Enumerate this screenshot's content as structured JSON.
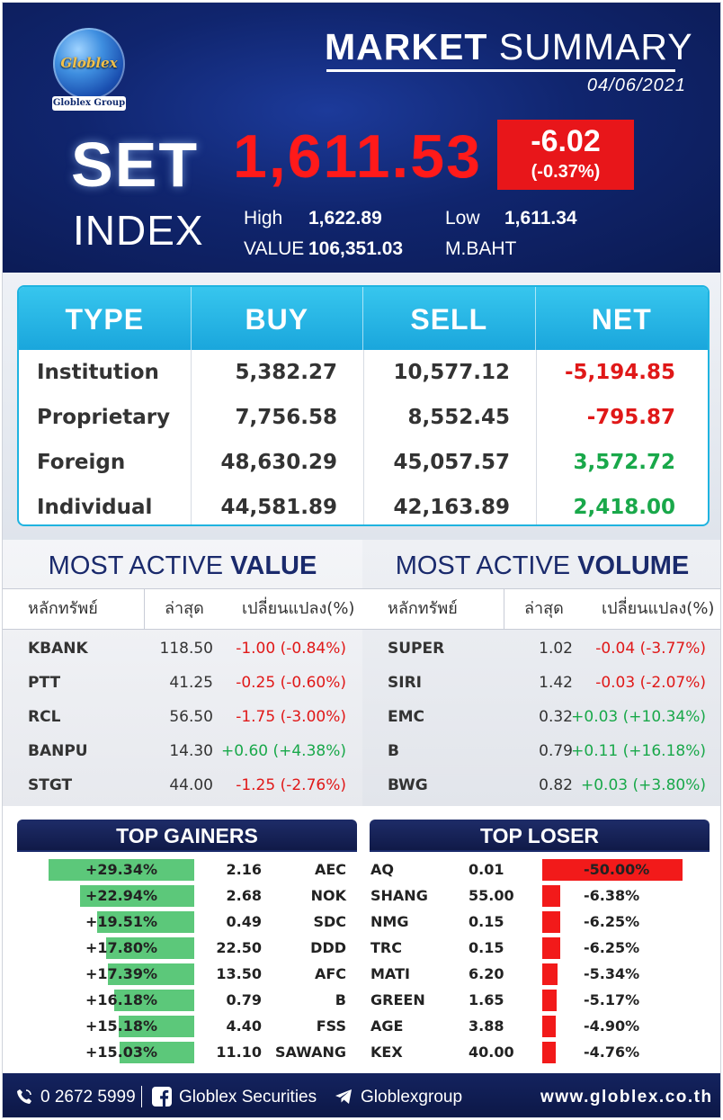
{
  "header": {
    "logo_text": "Globlex",
    "logo_group": "Globlex Group",
    "title_bold": "MARKET",
    "title_rest": " SUMMARY",
    "date": "04/06/2021",
    "set_label": "SET",
    "index_label": "INDEX",
    "index_value": "1,611.53",
    "change": "-6.02",
    "change_pct": "(-0.37%)",
    "high_label": "High",
    "high_value": "1,622.89",
    "low_label": "Low",
    "low_value": "1,611.34",
    "value_label": "VALUE",
    "value_amount": "106,351.03",
    "value_unit": "M.BAHT"
  },
  "investors": {
    "headers": [
      "TYPE",
      "BUY",
      "SELL",
      "NET"
    ],
    "rows": [
      {
        "type": "Institution",
        "buy": "5,382.27",
        "sell": "10,577.12",
        "net": "-5,194.85",
        "dir": "neg"
      },
      {
        "type": "Proprietary",
        "buy": "7,756.58",
        "sell": "8,552.45",
        "net": "-795.87",
        "dir": "neg"
      },
      {
        "type": "Foreign",
        "buy": "48,630.29",
        "sell": "45,057.57",
        "net": "3,572.72",
        "dir": "pos"
      },
      {
        "type": "Individual",
        "buy": "44,581.89",
        "sell": "42,163.89",
        "net": "2,418.00",
        "dir": "pos"
      }
    ]
  },
  "most_active_value": {
    "title_prefix": "MOST ACTIVE ",
    "title_bold": "VALUE",
    "headers": [
      "หลักทรัพย์",
      "ล่าสุด",
      "เปลี่ยนแปลง(%)"
    ],
    "rows": [
      {
        "symbol": "KBANK",
        "last": "118.50",
        "change": "-1.00 (-0.84%)",
        "dir": "neg"
      },
      {
        "symbol": "PTT",
        "last": "41.25",
        "change": "-0.25 (-0.60%)",
        "dir": "neg"
      },
      {
        "symbol": "RCL",
        "last": "56.50",
        "change": "-1.75 (-3.00%)",
        "dir": "neg"
      },
      {
        "symbol": "BANPU",
        "last": "14.30",
        "change": "+0.60 (+4.38%)",
        "dir": "pos"
      },
      {
        "symbol": "STGT",
        "last": "44.00",
        "change": "-1.25 (-2.76%)",
        "dir": "neg"
      }
    ]
  },
  "most_active_volume": {
    "title_prefix": "MOST ACTIVE ",
    "title_bold": "VOLUME",
    "headers": [
      "หลักทรัพย์",
      "ล่าสุด",
      "เปลี่ยนแปลง(%)"
    ],
    "rows": [
      {
        "symbol": "SUPER",
        "last": "1.02",
        "change": "-0.04 (-3.77%)",
        "dir": "neg"
      },
      {
        "symbol": "SIRI",
        "last": "1.42",
        "change": "-0.03 (-2.07%)",
        "dir": "neg"
      },
      {
        "symbol": "EMC",
        "last": "0.32",
        "change": "+0.03 (+10.34%)",
        "dir": "pos"
      },
      {
        "symbol": "B",
        "last": "0.79",
        "change": "+0.11 (+16.18%)",
        "dir": "pos"
      },
      {
        "symbol": "BWG",
        "last": "0.82",
        "change": "+0.03 (+3.80%)",
        "dir": "pos"
      }
    ]
  },
  "top_gainers": {
    "title": "TOP GAINERS",
    "bar_color": "#5cc87a",
    "rows": [
      {
        "pct": "+29.34%",
        "price": "2.16",
        "symbol": "AEC",
        "level": 29.34
      },
      {
        "pct": "+22.94%",
        "price": "2.68",
        "symbol": "NOK",
        "level": 22.94
      },
      {
        "pct": "+19.51%",
        "price": "0.49",
        "symbol": "SDC",
        "level": 19.51
      },
      {
        "pct": "+17.80%",
        "price": "22.50",
        "symbol": "DDD",
        "level": 17.8
      },
      {
        "pct": "+17.39%",
        "price": "13.50",
        "symbol": "AFC",
        "level": 17.39
      },
      {
        "pct": "+16.18%",
        "price": "0.79",
        "symbol": "B",
        "level": 16.18
      },
      {
        "pct": "+15.18%",
        "price": "4.40",
        "symbol": "FSS",
        "level": 15.18
      },
      {
        "pct": "+15.03%",
        "price": "11.10",
        "symbol": "SAWANG",
        "level": 15.03
      }
    ]
  },
  "top_loser": {
    "title": "TOP LOSER",
    "bar_color": "#f21a1a",
    "rows": [
      {
        "symbol": "AQ",
        "price": "0.01",
        "pct": "-50.00%",
        "level": 50.0
      },
      {
        "symbol": "SHANG",
        "price": "55.00",
        "pct": "-6.38%",
        "level": 6.38
      },
      {
        "symbol": "NMG",
        "price": "0.15",
        "pct": "-6.25%",
        "level": 6.25
      },
      {
        "symbol": "TRC",
        "price": "0.15",
        "pct": "-6.25%",
        "level": 6.25
      },
      {
        "symbol": "MATI",
        "price": "6.20",
        "pct": "-5.34%",
        "level": 5.34
      },
      {
        "symbol": "GREEN",
        "price": "1.65",
        "pct": "-5.17%",
        "level": 5.17
      },
      {
        "symbol": "AGE",
        "price": "3.88",
        "pct": "-4.90%",
        "level": 4.9
      },
      {
        "symbol": "KEX",
        "price": "40.00",
        "pct": "-4.76%",
        "level": 4.76
      }
    ]
  },
  "footer": {
    "phone": "0 2672 5999",
    "facebook": "Globlex Securities",
    "telegram": "Globlexgroup",
    "website": "www.globlex.co.th"
  },
  "colors": {
    "negative": "#e01818",
    "positive": "#19a84a",
    "accent": "#1fb3e0",
    "navy": "#10256e"
  }
}
